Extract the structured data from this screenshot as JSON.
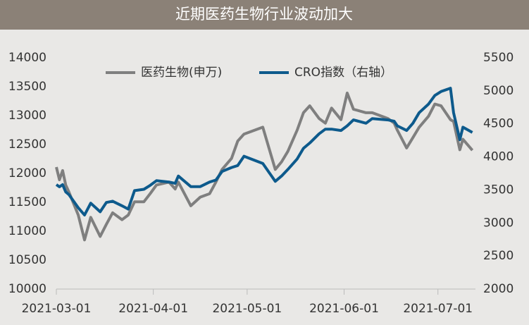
{
  "chart_data": {
    "type": "line",
    "title": "近期医药生物行业波动加大",
    "x": [
      "2021-03-01",
      "2021-03-02",
      "2021-03-03",
      "2021-03-04",
      "2021-03-05",
      "2021-03-08",
      "2021-03-10",
      "2021-03-12",
      "2021-03-15",
      "2021-03-17",
      "2021-03-19",
      "2021-03-22",
      "2021-03-24",
      "2021-03-26",
      "2021-03-29",
      "2021-03-31",
      "2021-04-02",
      "2021-04-06",
      "2021-04-08",
      "2021-04-09",
      "2021-04-13",
      "2021-04-16",
      "2021-04-19",
      "2021-04-21",
      "2021-04-23",
      "2021-04-26",
      "2021-04-28",
      "2021-04-30",
      "2021-05-06",
      "2021-05-10",
      "2021-05-12",
      "2021-05-14",
      "2021-05-17",
      "2021-05-19",
      "2021-05-21",
      "2021-05-24",
      "2021-05-26",
      "2021-05-28",
      "2021-05-31",
      "2021-06-02",
      "2021-06-04",
      "2021-06-08",
      "2021-06-10",
      "2021-06-15",
      "2021-06-17",
      "2021-06-18",
      "2021-06-21",
      "2021-06-23",
      "2021-06-25",
      "2021-06-28",
      "2021-06-30",
      "2021-07-02",
      "2021-07-05",
      "2021-07-06",
      "2021-07-08",
      "2021-07-09",
      "2021-07-12"
    ],
    "series": [
      {
        "name": "医药生物(申万)",
        "color": "#7f7f7f",
        "values": [
          12110,
          11890,
          12050,
          11800,
          11680,
          11280,
          10850,
          11240,
          10910,
          11120,
          11320,
          11200,
          11280,
          11510,
          11510,
          11650,
          11800,
          11850,
          11730,
          11850,
          11440,
          11590,
          11650,
          11850,
          12070,
          12260,
          12560,
          12680,
          12800,
          12070,
          12200,
          12380,
          12750,
          13050,
          13170,
          12950,
          12870,
          13130,
          12930,
          13390,
          13110,
          13050,
          13050,
          12950,
          12870,
          12750,
          12440,
          12620,
          12800,
          12990,
          13200,
          13170,
          12930,
          12900,
          12410,
          12590,
          12400
        ]
      },
      {
        "name": "CRO指数（右轴）",
        "color": "#0d5a8c",
        "axis": "y2",
        "values": [
          3580,
          3547,
          3580,
          3470,
          3430,
          3230,
          3120,
          3300,
          3170,
          3310,
          3330,
          3260,
          3210,
          3490,
          3510,
          3570,
          3640,
          3620,
          3600,
          3710,
          3550,
          3550,
          3620,
          3650,
          3780,
          3840,
          3870,
          4010,
          3900,
          3630,
          3710,
          3810,
          3970,
          4130,
          4210,
          4350,
          4420,
          4420,
          4400,
          4470,
          4560,
          4510,
          4580,
          4560,
          4540,
          4470,
          4400,
          4510,
          4670,
          4800,
          4930,
          4990,
          5040,
          4670,
          4260,
          4450,
          4370
        ]
      }
    ],
    "xlim": [
      "2021-03-01",
      "2021-07-13"
    ],
    "xticks": [
      "2021-03-01",
      "2021-04-01",
      "2021-05-01",
      "2021-06-01",
      "2021-07-01"
    ],
    "ylim": [
      10000,
      14000
    ],
    "yticks": [
      10000,
      10500,
      11000,
      11500,
      12000,
      12500,
      13000,
      13500,
      14000
    ],
    "y2lim": [
      2000,
      5500
    ],
    "y2ticks": [
      2000,
      2500,
      3000,
      3500,
      4000,
      4500,
      5000,
      5500
    ],
    "legend": "top"
  }
}
